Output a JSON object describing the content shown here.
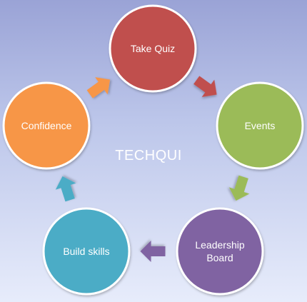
{
  "diagram": {
    "center_label": "TECHQUI",
    "nodes": [
      {
        "id": "take-quiz",
        "lines": [
          "Take Quiz"
        ],
        "color": "#c0504d",
        "stroke": "#ffffff"
      },
      {
        "id": "events",
        "lines": [
          "Events"
        ],
        "color": "#9bbb59",
        "stroke": "#ffffff"
      },
      {
        "id": "leadership-board",
        "lines": [
          "Leadership",
          "Board"
        ],
        "color": "#8064a2",
        "stroke": "#ffffff"
      },
      {
        "id": "build-skills",
        "lines": [
          "Build skills"
        ],
        "color": "#4bacc6",
        "stroke": "#ffffff"
      },
      {
        "id": "confidence",
        "lines": [
          "Confidence"
        ],
        "color": "#f79646",
        "stroke": "#ffffff"
      }
    ],
    "arrows": [
      {
        "from": "take-quiz",
        "to": "events",
        "color": "#c0504d"
      },
      {
        "from": "events",
        "to": "leadership-board",
        "color": "#9bbb59"
      },
      {
        "from": "leadership-board",
        "to": "build-skills",
        "color": "#8064a2"
      },
      {
        "from": "build-skills",
        "to": "confidence",
        "color": "#4bacc6"
      },
      {
        "from": "confidence",
        "to": "take-quiz",
        "color": "#f79646"
      }
    ]
  }
}
